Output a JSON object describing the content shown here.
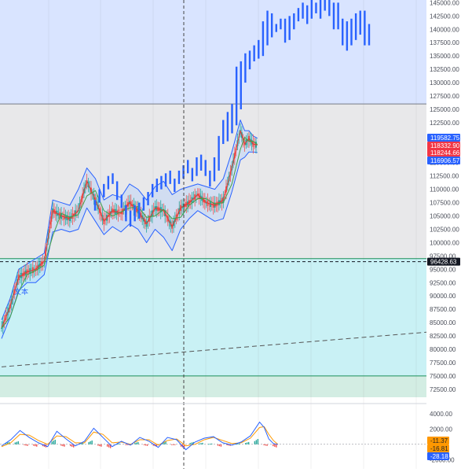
{
  "colors": {
    "zone_top": "#d9e4ff",
    "zone_mid": "#e8e8ea",
    "zone_bottom_cyan": "#c9f1f5",
    "zone_bottom_green": "#d3ede3",
    "separator_gray": "#777b86",
    "separator_green": "#1b8f5a",
    "bb_band": "#2962ff",
    "bb_fill": "#a6c8ff",
    "candle_up": "#26a69a",
    "candle_down": "#ef5350",
    "ma_red": "#e53935",
    "ma_green": "#43a047",
    "signal_blue": "#2962ff",
    "macd_line": "#2962ff",
    "signal_line": "#ff9800",
    "hist_up": "#26a69a",
    "hist_down": "#ef5350",
    "tag_blue": "#2962ff",
    "tag_red": "#f23645",
    "tag_orange": "#ff9800",
    "tag_dark": "#131722"
  },
  "chart_data": {
    "type": "line",
    "main_pane": {
      "y_ticks": [
        "145000.00",
        "142500.00",
        "140000.00",
        "137500.00",
        "135000.00",
        "132500.00",
        "130000.00",
        "127500.00",
        "125000.00",
        "122500.00",
        "120000.00",
        "117500.00",
        "115000.00",
        "112500.00",
        "110000.00",
        "107500.00",
        "105000.00",
        "102500.00",
        "100000.00",
        "97500.00",
        "95000.00",
        "92500.00",
        "90000.00",
        "87500.00",
        "85000.00",
        "82500.00",
        "80000.00",
        "77500.00",
        "75000.00",
        "72500.00"
      ],
      "ylim": [
        71000,
        145500
      ],
      "xlim": [
        0,
        100
      ],
      "zones": [
        {
          "from": 126000,
          "to": 145500,
          "color": "zone_top"
        },
        {
          "from": 97000,
          "to": 126000,
          "color": "zone_mid"
        },
        {
          "from": 75000,
          "to": 97000,
          "color": "zone_bottom_cyan"
        },
        {
          "from": 71000,
          "to": 75000,
          "color": "zone_bottom_green"
        }
      ],
      "horizontal_lines": [
        {
          "y": 126000,
          "style": "solid",
          "color": "separator_gray"
        },
        {
          "y": 97000,
          "style": "solid",
          "color": "separator_green"
        },
        {
          "y": 96428.63,
          "style": "dashed",
          "color": "tag_dark"
        },
        {
          "y": 75000,
          "style": "solid",
          "color": "separator_green"
        }
      ],
      "trend_line": {
        "x": [
          0,
          100
        ],
        "y": [
          76700,
          83200
        ],
        "style": "dashed",
        "color": "#555555"
      },
      "vertical_crosshair_x": 40,
      "price_series": {
        "name": "",
        "x": [
          0,
          2,
          4,
          6,
          8,
          10,
          12,
          14,
          16,
          18,
          20,
          22,
          24,
          26,
          28,
          30,
          32,
          34,
          36,
          38,
          40,
          42,
          44,
          46,
          48,
          50,
          52,
          54,
          56,
          57,
          58,
          59,
          60
        ],
        "y": [
          84000,
          88000,
          93500,
          94500,
          95000,
          96500,
          106000,
          105000,
          104500,
          106000,
          111500,
          108000,
          104000,
          106000,
          105500,
          107500,
          106000,
          103500,
          106500,
          106000,
          103000,
          106500,
          107500,
          109000,
          107500,
          107000,
          108000,
          114000,
          121000,
          118500,
          119500,
          118500,
          118300
        ]
      },
      "upper_band": {
        "name": "",
        "x": [
          0,
          2,
          4,
          6,
          8,
          10,
          12,
          14,
          16,
          18,
          20,
          22,
          24,
          26,
          28,
          30,
          32,
          34,
          36,
          38,
          40,
          42,
          44,
          46,
          48,
          50,
          52,
          54,
          56,
          57,
          58,
          59,
          60
        ],
        "y": [
          85500,
          89500,
          95000,
          96000,
          97000,
          98000,
          108000,
          107500,
          107000,
          110000,
          114000,
          112000,
          108000,
          109000,
          108500,
          111000,
          110000,
          108000,
          110500,
          111500,
          109000,
          110000,
          110500,
          111000,
          110500,
          110000,
          112000,
          117000,
          123000,
          121000,
          121000,
          120000,
          119582.75
        ]
      },
      "lower_band": {
        "name": "",
        "x": [
          0,
          2,
          4,
          6,
          8,
          10,
          12,
          14,
          16,
          18,
          20,
          22,
          24,
          26,
          28,
          30,
          32,
          34,
          36,
          38,
          40,
          42,
          44,
          46,
          48,
          50,
          52,
          54,
          56,
          57,
          58,
          59,
          60
        ],
        "y": [
          82000,
          86000,
          91000,
          92500,
          92500,
          94000,
          102000,
          102500,
          102000,
          102500,
          106500,
          104000,
          101500,
          103000,
          102000,
          103500,
          102500,
          100000,
          102500,
          101000,
          98500,
          102500,
          104500,
          106000,
          105000,
          104000,
          104500,
          109500,
          115500,
          116000,
          117000,
          117000,
          116906.57
        ]
      },
      "signal_bars": {
        "name": "",
        "x": [
          19,
          20,
          21,
          22,
          23,
          24,
          25,
          26,
          27,
          28,
          29,
          30,
          31,
          32,
          33,
          34,
          35,
          36,
          37,
          38,
          39,
          40,
          41,
          42,
          43,
          44,
          45,
          46,
          47,
          48,
          49,
          50,
          51,
          52,
          53,
          54,
          55,
          56,
          57,
          58,
          59,
          60,
          61,
          62,
          63,
          64,
          65,
          66,
          67,
          68,
          69,
          70,
          71,
          72,
          73,
          74,
          75,
          76,
          77,
          78,
          79,
          80,
          81
        ],
        "low": [
          106000,
          107500,
          108500,
          110000,
          111000,
          108000,
          106500,
          104000,
          103000,
          104000,
          104500,
          106000,
          107000,
          108500,
          109500,
          110000,
          110500,
          111000,
          109500,
          111000,
          112000,
          113000,
          111500,
          112500,
          113500,
          112500,
          110500,
          111500,
          113500,
          118500,
          119000,
          120500,
          122000,
          125000,
          130000,
          132500,
          134000,
          134500,
          135000,
          137000,
          138500,
          139500,
          140000,
          137500,
          138000,
          140000,
          141500,
          142000,
          141000,
          142000,
          143000,
          142000,
          143500,
          142500,
          140000,
          140000,
          137000,
          136000,
          137000,
          138000,
          139000,
          137000,
          137000
        ],
        "high": [
          108000,
          110000,
          111000,
          112500,
          113000,
          111500,
          109000,
          107000,
          106000,
          107000,
          107500,
          108500,
          109500,
          111000,
          112000,
          112500,
          113000,
          113500,
          112000,
          113500,
          114500,
          115500,
          114000,
          116000,
          116500,
          115500,
          113500,
          116000,
          120000,
          123000,
          124500,
          126000,
          133000,
          134000,
          135500,
          136000,
          137000,
          138000,
          141500,
          143500,
          143000,
          141000,
          142000,
          142000,
          142500,
          143000,
          144000,
          145000,
          144500,
          145500,
          145000,
          145500,
          145500,
          145500,
          145000,
          145000,
          142000,
          141500,
          142000,
          143000,
          143500,
          143500,
          141000
        ]
      },
      "annotations": [
        "文本"
      ],
      "price_tags": [
        {
          "label": "119582.75",
          "value": 119582.75,
          "color": "tag_blue"
        },
        {
          "label": "118332.90",
          "value": 118332.9,
          "color": "tag_red"
        },
        {
          "label": "118244.66",
          "value": 118244.66,
          "color": "tag_red"
        },
        {
          "label": "116906.57",
          "value": 116906.57,
          "color": "tag_blue"
        },
        {
          "label": "96428.63",
          "value": 96428.63,
          "color": "tag_dark"
        }
      ]
    },
    "sub_pane": {
      "y_ticks": [
        "4000.00",
        "2000.00",
        "-2000.00"
      ],
      "ylim": [
        -3200,
        4600
      ],
      "macd_line": {
        "name": "",
        "x": [
          0,
          2,
          4,
          6,
          8,
          10,
          12,
          14,
          16,
          18,
          20,
          22,
          24,
          26,
          28,
          30,
          32,
          34,
          36,
          38,
          40,
          42,
          44,
          46,
          48,
          50,
          52,
          54,
          56,
          57,
          58,
          59,
          60
        ],
        "y": [
          -200,
          600,
          1800,
          900,
          200,
          -300,
          1700,
          700,
          -200,
          400,
          2100,
          900,
          -300,
          400,
          -100,
          900,
          400,
          -400,
          900,
          600,
          -700,
          300,
          800,
          1000,
          200,
          -100,
          300,
          1100,
          2900,
          2200,
          700,
          100,
          -11.37
        ]
      },
      "signal_line": {
        "name": "",
        "x": [
          0,
          2,
          4,
          6,
          8,
          10,
          12,
          14,
          16,
          18,
          20,
          22,
          24,
          26,
          28,
          30,
          32,
          34,
          36,
          38,
          40,
          42,
          44,
          46,
          48,
          50,
          52,
          54,
          56,
          57,
          58,
          59,
          60
        ],
        "y": [
          -300,
          200,
          1300,
          1200,
          500,
          0,
          1100,
          1000,
          200,
          200,
          1600,
          1300,
          200,
          300,
          0,
          600,
          600,
          -100,
          500,
          700,
          -200,
          0,
          600,
          900,
          500,
          100,
          200,
          800,
          2200,
          2300,
          1300,
          500,
          -16.81
        ]
      },
      "histogram": {
        "name": "",
        "x": [
          1,
          3,
          5,
          7,
          9,
          11,
          13,
          15,
          17,
          19,
          21,
          23,
          25,
          27,
          29,
          31,
          33,
          35,
          37,
          39,
          41,
          43,
          45,
          47,
          49,
          51,
          53,
          55,
          57,
          59
        ],
        "values": [
          300,
          400,
          -200,
          -300,
          -400,
          600,
          -300,
          -400,
          200,
          500,
          -300,
          -500,
          100,
          -100,
          300,
          -200,
          -300,
          400,
          -100,
          -500,
          300,
          200,
          100,
          -300,
          -200,
          100,
          300,
          700,
          -200,
          -400
        ]
      },
      "value_tags": [
        {
          "label": "-11.37",
          "value": -11.37,
          "color": "tag_orange"
        },
        {
          "label": "-16.81",
          "value": -16.81,
          "color": "tag_orange"
        },
        {
          "label": "-28.18",
          "value": -28.18,
          "color": "tag_blue"
        }
      ]
    }
  }
}
